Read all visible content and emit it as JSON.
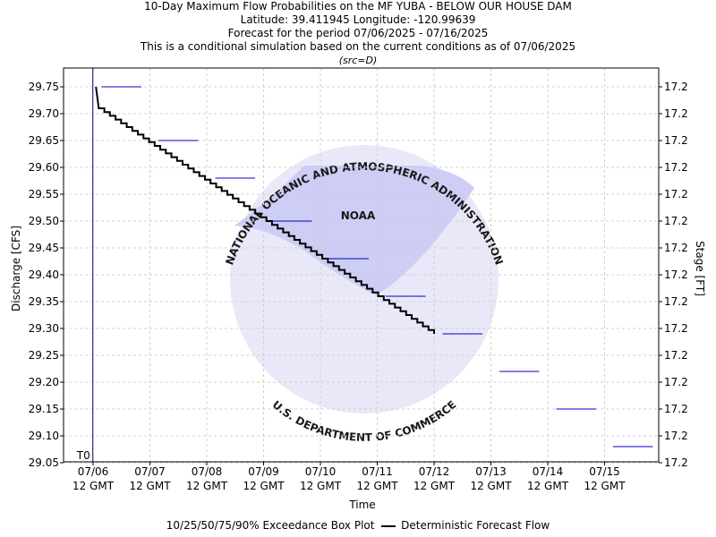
{
  "header": {
    "title": "10-Day Maximum Flow Probabilities on the MF YUBA - BELOW OUR HOUSE DAM",
    "location": "Latitude: 39.411945 Longitude: -120.99639",
    "period": "Forecast for the period 07/06/2025 - 07/16/2025",
    "note": "This is a conditional simulation based on the current conditions as of 07/06/2025",
    "src": "(src=D)"
  },
  "watermark": {
    "logo_text": "NOAA",
    "ring_top": "NATIONAL OCEANIC AND ATMOSPHERIC ADMINISTRATION",
    "ring_bottom": "U.S. DEPARTMENT OF COMMERCE"
  },
  "legend": {
    "box_label": "10/25/50/75/90% Exceedance Box Plot",
    "line_label": "Deterministic Forecast Flow"
  },
  "colors": {
    "deterministic": "#000000",
    "exceedance": "#0000cc",
    "t0_line": "#000080",
    "watermark": "#c8c8f5"
  },
  "chart_data": {
    "type": "line",
    "xlabel": "Time",
    "ylabel": "Discharge [CFS]",
    "y2label": "Stage [FT]",
    "ylim": [
      29.05,
      29.75
    ],
    "y_ticks": [
      "29.75",
      "29.70",
      "29.65",
      "29.60",
      "29.55",
      "29.50",
      "29.45",
      "29.40",
      "29.35",
      "29.30",
      "29.25",
      "29.20",
      "29.15",
      "29.10",
      "29.05"
    ],
    "y2_ticks": [
      "17.2",
      "17.2",
      "17.2",
      "17.2",
      "17.2",
      "17.2",
      "17.2",
      "17.2",
      "17.2",
      "17.2",
      "17.2",
      "17.2",
      "17.2",
      "17.2",
      "17.2"
    ],
    "x_ticks": [
      {
        "day": 0,
        "line1": "07/06",
        "line2": "12 GMT"
      },
      {
        "day": 1,
        "line1": "07/07",
        "line2": "12 GMT"
      },
      {
        "day": 2,
        "line1": "07/08",
        "line2": "12 GMT"
      },
      {
        "day": 3,
        "line1": "07/09",
        "line2": "12 GMT"
      },
      {
        "day": 4,
        "line1": "07/10",
        "line2": "12 GMT"
      },
      {
        "day": 5,
        "line1": "07/11",
        "line2": "12 GMT"
      },
      {
        "day": 6,
        "line1": "07/12",
        "line2": "12 GMT"
      },
      {
        "day": 7,
        "line1": "07/13",
        "line2": "12 GMT"
      },
      {
        "day": 8,
        "line1": "07/14",
        "line2": "12 GMT"
      },
      {
        "day": 9,
        "line1": "07/15",
        "line2": "12 GMT"
      }
    ],
    "t0": {
      "label": "T0",
      "day": -0.02
    },
    "series": [
      {
        "name": "Deterministic Forecast Flow",
        "style": "stepped line",
        "start": [
          0.05,
          29.75
        ],
        "points": [
          [
            0.1,
            29.71
          ],
          [
            6.0,
            29.29
          ]
        ]
      },
      {
        "name": "10/25/50/75/90% Exceedance Box Plot",
        "style": "daily flat marks",
        "segments": [
          {
            "x0": 0.15,
            "x1": 0.85,
            "y": 29.75
          },
          {
            "x0": 1.15,
            "x1": 1.85,
            "y": 29.65
          },
          {
            "x0": 2.15,
            "x1": 2.85,
            "y": 29.58
          },
          {
            "x0": 3.15,
            "x1": 3.85,
            "y": 29.5
          },
          {
            "x0": 4.15,
            "x1": 4.85,
            "y": 29.43
          },
          {
            "x0": 5.15,
            "x1": 5.85,
            "y": 29.36
          },
          {
            "x0": 6.15,
            "x1": 6.85,
            "y": 29.29
          },
          {
            "x0": 7.15,
            "x1": 7.85,
            "y": 29.22
          },
          {
            "x0": 8.15,
            "x1": 8.85,
            "y": 29.15
          },
          {
            "x0": 9.15,
            "x1": 9.85,
            "y": 29.08
          }
        ]
      }
    ],
    "grid": true
  }
}
